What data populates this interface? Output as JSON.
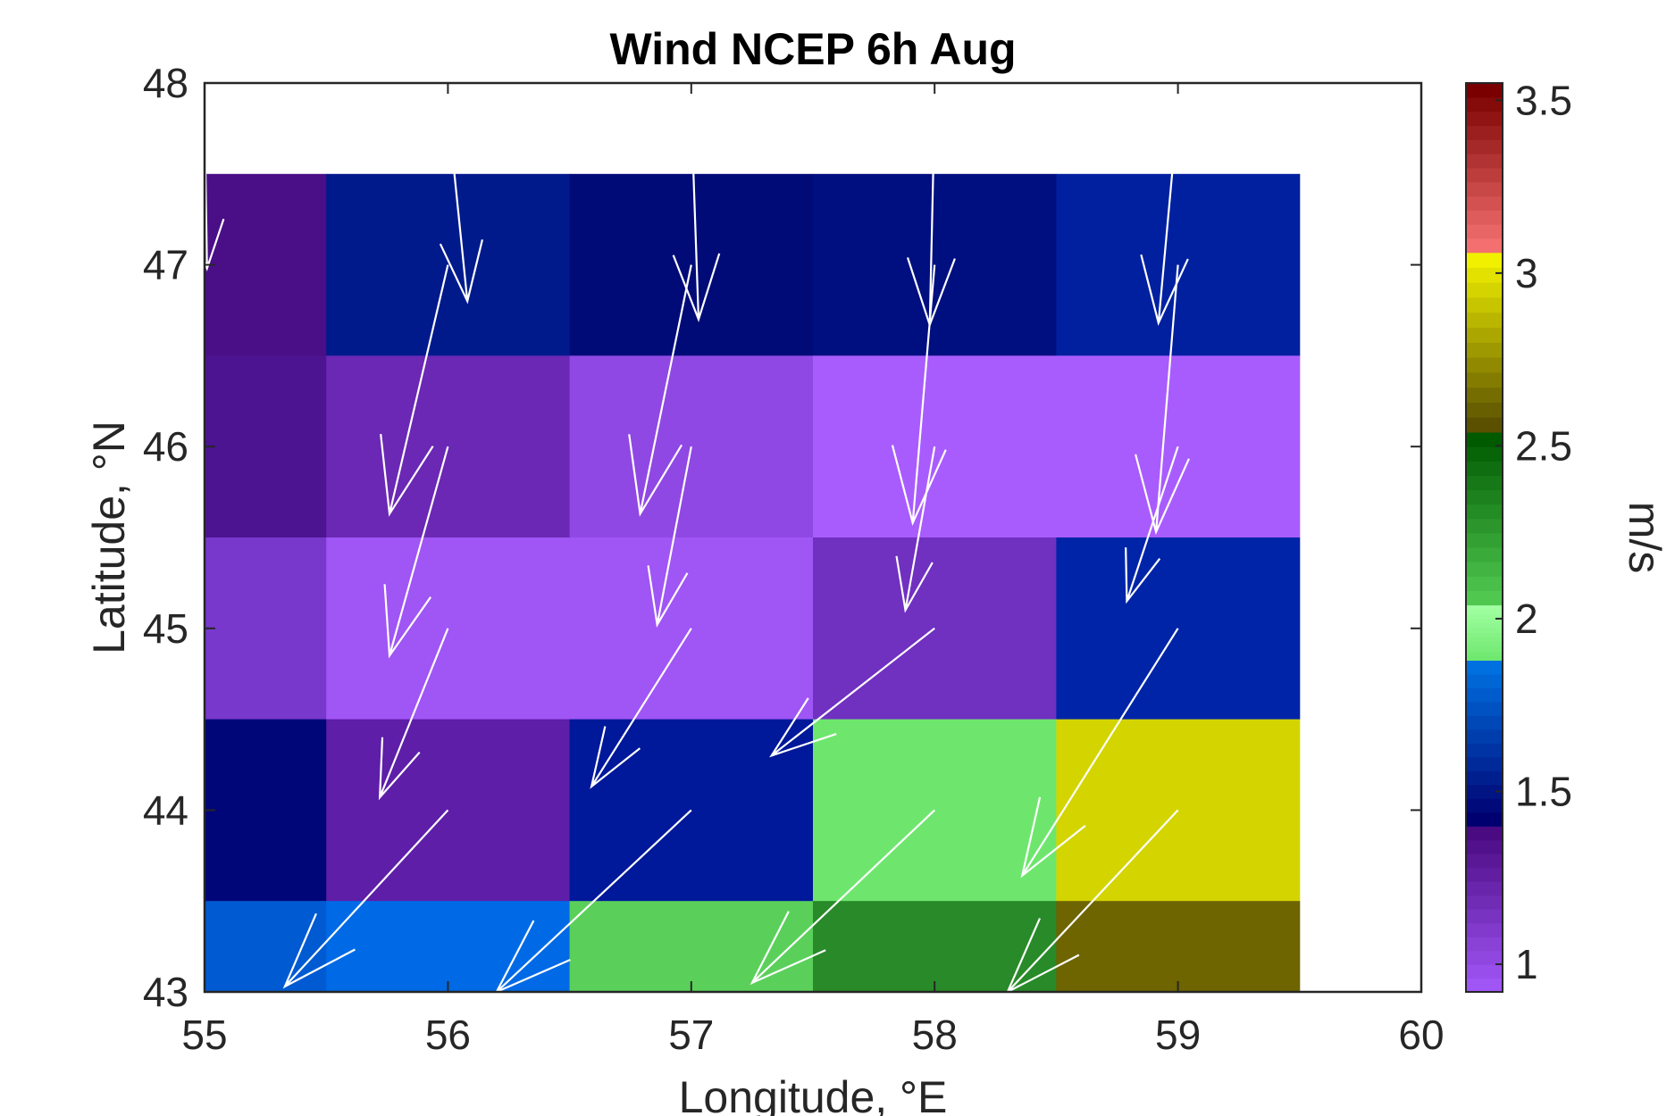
{
  "chart_data": {
    "type": "heatmap",
    "title": "Wind NCEP 6h Aug",
    "xlabel": "Longitude, °E",
    "ylabel": "Latitude, °N",
    "xlim": [
      55,
      60
    ],
    "ylim": [
      43,
      48
    ],
    "xticks": [
      "55",
      "56",
      "57",
      "58",
      "59",
      "60"
    ],
    "yticks": [
      "43",
      "44",
      "45",
      "46",
      "47",
      "48"
    ],
    "x_centers": [
      55,
      56,
      57,
      58,
      59
    ],
    "y_centers": [
      47,
      46,
      45,
      44,
      43
    ],
    "cell_half_width": 0.5,
    "colorbar": {
      "label": "m/s",
      "range": [
        0.92,
        3.55
      ],
      "ticks": [
        "1",
        "1.5",
        "2",
        "2.5",
        "3",
        "3.5"
      ],
      "segments": [
        {
          "from": 0.92,
          "to": 1.4,
          "color_low": "#a055f5",
          "color_high": "#4a0a82"
        },
        {
          "from": 1.4,
          "to": 1.88,
          "color_low": "#000070",
          "color_high": "#0070e0"
        },
        {
          "from": 1.88,
          "to": 2.04,
          "color_low": "#70e870",
          "color_high": "#a0ffa0"
        },
        {
          "from": 2.04,
          "to": 2.54,
          "color_low": "#50c850",
          "color_high": "#005a00"
        },
        {
          "from": 2.54,
          "to": 3.06,
          "color_low": "#5a5000",
          "color_high": "#f0f000"
        },
        {
          "from": 3.06,
          "to": 3.55,
          "color_low": "#f47070",
          "color_high": "#7a0000"
        }
      ]
    },
    "rows": [
      {
        "lat": 47,
        "cells": [
          {
            "lon": 55,
            "speed": 1.33,
            "color": "#4a0e87"
          },
          {
            "lon": 56,
            "speed": 1.51,
            "color": "#001a8c"
          },
          {
            "lon": 57,
            "speed": 1.44,
            "color": "#000b78"
          },
          {
            "lon": 58,
            "speed": 1.47,
            "color": "#000f80"
          },
          {
            "lon": 59,
            "speed": 1.56,
            "color": "#0020a0"
          }
        ]
      },
      {
        "lat": 46,
        "cells": [
          {
            "lon": 55,
            "speed": 1.3,
            "color": "#4c1490"
          },
          {
            "lon": 56,
            "speed": 1.22,
            "color": "#6a28b4"
          },
          {
            "lon": 57,
            "speed": 1.04,
            "color": "#9048e4"
          },
          {
            "lon": 58,
            "speed": 0.95,
            "color": "#a95cfd"
          },
          {
            "lon": 59,
            "speed": 0.95,
            "color": "#a95cfd"
          }
        ]
      },
      {
        "lat": 45,
        "cells": [
          {
            "lon": 55,
            "speed": 1.13,
            "color": "#7838cc"
          },
          {
            "lon": 56,
            "speed": 0.98,
            "color": "#a055f5"
          },
          {
            "lon": 57,
            "speed": 0.98,
            "color": "#a055f5"
          },
          {
            "lon": 58,
            "speed": 1.19,
            "color": "#7030c0"
          },
          {
            "lon": 59,
            "speed": 1.56,
            "color": "#0024a8"
          }
        ]
      },
      {
        "lat": 44,
        "cells": [
          {
            "lon": 55,
            "speed": 1.43,
            "color": "#000678"
          },
          {
            "lon": 56,
            "speed": 1.25,
            "color": "#5e1ea8"
          },
          {
            "lon": 57,
            "speed": 1.51,
            "color": "#00189a"
          },
          {
            "lon": 58,
            "speed": 1.97,
            "color": "#6ee66e"
          },
          {
            "lon": 59,
            "speed": 2.93,
            "color": "#d4d400"
          }
        ]
      },
      {
        "lat": 43,
        "cells": [
          {
            "lon": 55,
            "speed": 1.78,
            "color": "#005ad2"
          },
          {
            "lon": 56,
            "speed": 1.83,
            "color": "#006ae6"
          },
          {
            "lon": 57,
            "speed": 2.13,
            "color": "#5ad05a"
          },
          {
            "lon": 58,
            "speed": 2.38,
            "color": "#288a28"
          },
          {
            "lon": 59,
            "speed": 2.63,
            "color": "#6e6400"
          }
        ]
      }
    ],
    "arrows": [
      {
        "x": 55.0,
        "y": 47.85,
        "u": 0.01,
        "v": -0.87
      },
      {
        "x": 56.0,
        "y": 47.85,
        "u": 0.08,
        "v": -1.05
      },
      {
        "x": 57.0,
        "y": 47.85,
        "u": 0.03,
        "v": -1.15
      },
      {
        "x": 58.0,
        "y": 47.85,
        "u": -0.02,
        "v": -1.18
      },
      {
        "x": 59.0,
        "y": 47.85,
        "u": -0.08,
        "v": -1.17
      },
      {
        "x": 56.0,
        "y": 47.0,
        "u": -0.24,
        "v": -1.37
      },
      {
        "x": 57.0,
        "y": 47.0,
        "u": -0.21,
        "v": -1.37
      },
      {
        "x": 58.0,
        "y": 47.0,
        "u": -0.09,
        "v": -1.42
      },
      {
        "x": 59.0,
        "y": 47.0,
        "u": -0.09,
        "v": -1.47
      },
      {
        "x": 56.0,
        "y": 46.0,
        "u": -0.24,
        "v": -1.15
      },
      {
        "x": 57.0,
        "y": 46.0,
        "u": -0.14,
        "v": -0.98
      },
      {
        "x": 58.0,
        "y": 46.0,
        "u": -0.12,
        "v": -0.9
      },
      {
        "x": 59.0,
        "y": 46.0,
        "u": -0.21,
        "v": -0.85
      },
      {
        "x": 56.0,
        "y": 45.0,
        "u": -0.28,
        "v": -0.93
      },
      {
        "x": 57.0,
        "y": 45.0,
        "u": -0.41,
        "v": -0.87
      },
      {
        "x": 58.0,
        "y": 45.0,
        "u": -0.67,
        "v": -0.7
      },
      {
        "x": 59.0,
        "y": 45.0,
        "u": -0.64,
        "v": -1.36
      },
      {
        "x": 56.0,
        "y": 44.0,
        "u": -0.67,
        "v": -0.97
      },
      {
        "x": 57.0,
        "y": 44.0,
        "u": -0.8,
        "v": -1.0
      },
      {
        "x": 58.0,
        "y": 44.0,
        "u": -0.75,
        "v": -0.95
      },
      {
        "x": 59.0,
        "y": 44.0,
        "u": -0.7,
        "v": -1.0
      }
    ]
  }
}
